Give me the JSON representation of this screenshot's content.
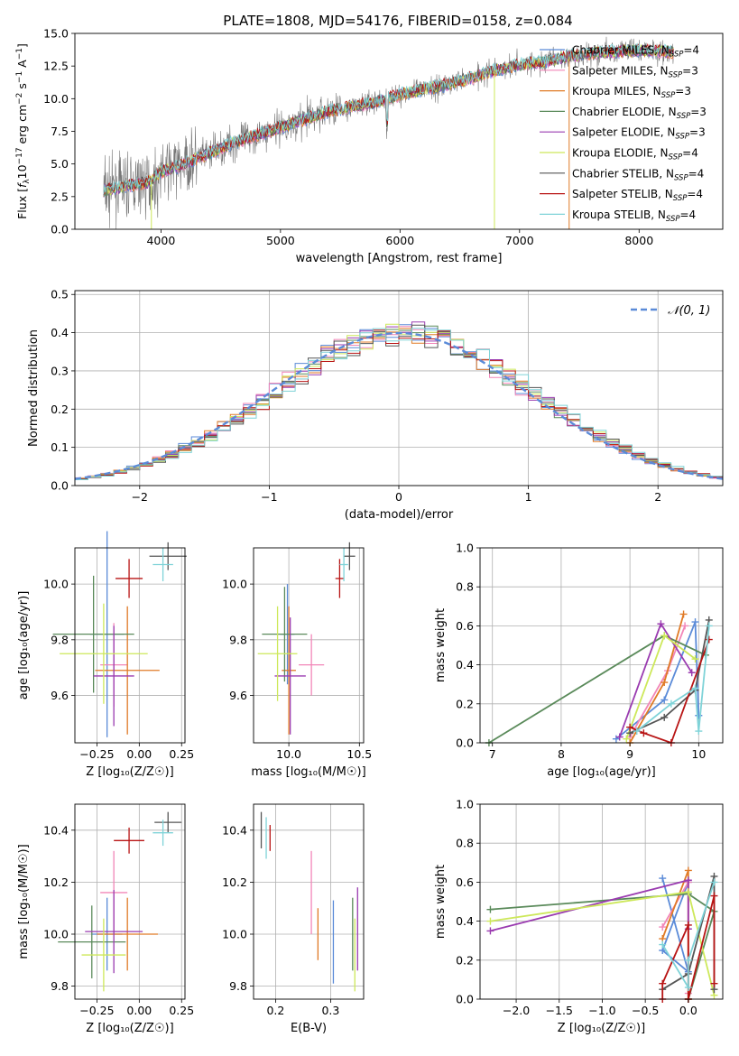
{
  "figure": {
    "title": "PLATE=1808, MJD=54176, FIBERID=0158, z=0.084"
  },
  "palette": {
    "Chabrier MILES": "#5b8bd8",
    "Salpeter MILES": "#f286b8",
    "Kroupa MILES": "#e07a26",
    "Chabrier ELODIE": "#5a8a5a",
    "Salpeter ELODIE": "#9a3bb0",
    "Kroupa ELODIE": "#cde85a",
    "Chabrier STELIB": "#555555",
    "Salpeter STELIB": "#b81414",
    "Kroupa STELIB": "#7fd3d8"
  },
  "chart_data": [
    {
      "id": "spectrum",
      "type": "line",
      "xlabel": "wavelength [Angstrom, rest frame]",
      "ylabel_parts": {
        "flux": "Flux [",
        "f": "f",
        "lambda": "λ",
        "ten": "10",
        "exp": "−17",
        "unit1": " erg cm",
        "exp2": "−2",
        "unit2": " s",
        "exp3": "−1",
        "unit3": " A",
        "exp4": "−1",
        "close": "]"
      },
      "xlim": [
        3280,
        8700
      ],
      "ylim": [
        0,
        15
      ],
      "xticks": [
        "4000",
        "5000",
        "6000",
        "7000",
        "8000"
      ],
      "xtick_values": [
        4000,
        5000,
        6000,
        7000,
        8000
      ],
      "yticks": [
        "0.0",
        "2.5",
        "5.0",
        "7.5",
        "10.0",
        "12.5",
        "15.0"
      ],
      "ytick_values": [
        0,
        2.5,
        5,
        7.5,
        10,
        12.5,
        15
      ],
      "legend": [
        {
          "name": "Chabrier MILES, N",
          "sub": "SSP",
          "suffix": "=4",
          "color_key": "Chabrier MILES"
        },
        {
          "name": "Salpeter MILES, N",
          "sub": "SSP",
          "suffix": "=3",
          "color_key": "Salpeter MILES"
        },
        {
          "name": "Kroupa MILES, N",
          "sub": "SSP",
          "suffix": "=3",
          "color_key": "Kroupa MILES"
        },
        {
          "name": "Chabrier ELODIE, N",
          "sub": "SSP",
          "suffix": "=3",
          "color_key": "Chabrier ELODIE"
        },
        {
          "name": "Salpeter ELODIE, N",
          "sub": "SSP",
          "suffix": "=3",
          "color_key": "Salpeter ELODIE"
        },
        {
          "name": "Kroupa ELODIE, N",
          "sub": "SSP",
          "suffix": "=4",
          "color_key": "Kroupa ELODIE"
        },
        {
          "name": "Chabrier STELIB, N",
          "sub": "SSP",
          "suffix": "=4",
          "color_key": "Chabrier STELIB"
        },
        {
          "name": "Salpeter STELIB, N",
          "sub": "SSP",
          "suffix": "=4",
          "color_key": "Salpeter STELIB"
        },
        {
          "name": "Kroupa STELIB, N",
          "sub": "SSP",
          "suffix": "=4",
          "color_key": "Kroupa STELIB"
        }
      ],
      "data_color": "#777777",
      "continuum": {
        "x": [
          3560,
          3700,
          3900,
          4000,
          4200,
          4400,
          4600,
          4800,
          5000,
          5200,
          5400,
          5600,
          5800,
          6000,
          6200,
          6400,
          6600,
          6800,
          7000,
          7200,
          7400,
          7600,
          7800,
          8000,
          8200,
          8300
        ],
        "y": [
          3.0,
          3.3,
          3.6,
          4.4,
          5.0,
          5.8,
          6.6,
          7.2,
          7.8,
          8.4,
          9.0,
          9.4,
          9.7,
          10.3,
          10.7,
          11.1,
          11.6,
          12.2,
          12.6,
          12.8,
          13.2,
          13.5,
          13.6,
          13.7,
          13.6,
          13.5
        ]
      },
      "drop_lines": [
        {
          "x": 6790,
          "color_key": "Kroupa ELODIE"
        },
        {
          "x": 7415,
          "color_key": "Kroupa MILES"
        },
        {
          "x": 3920,
          "color_key": "Kroupa ELODIE"
        }
      ]
    },
    {
      "id": "residuals",
      "type": "histogram",
      "xlabel": "(data-model)/error",
      "ylabel": "Normed distribution",
      "xlim": [
        -2.5,
        2.5
      ],
      "ylim": [
        0,
        0.51
      ],
      "xticks": [
        "−2",
        "−1",
        "0",
        "1",
        "2"
      ],
      "xtick_values": [
        -2,
        -1,
        0,
        1,
        2
      ],
      "yticks": [
        "0.0",
        "0.1",
        "0.2",
        "0.3",
        "0.4",
        "0.5"
      ],
      "ytick_values": [
        0,
        0.1,
        0.2,
        0.3,
        0.4,
        0.5
      ],
      "bin_width": 0.1,
      "legend": {
        "label": "𝒩(0, 1)",
        "color": "#5b8bd8"
      }
    },
    {
      "id": "age-vs-Z",
      "type": "scatter",
      "xlabel": "Z [log₁₀(Z/Z☉)]",
      "ylabel": "age  [log₁₀(age/yr)]",
      "xlim": [
        -0.38,
        0.27
      ],
      "ylim": [
        9.43,
        10.13
      ],
      "xticks": [
        "−0.25",
        "0.00",
        "0.25"
      ],
      "xtick_values": [
        -0.25,
        0,
        0.25
      ],
      "yticks": [
        "9.6",
        "9.8",
        "10.0"
      ],
      "ytick_values": [
        9.6,
        9.8,
        10.0
      ],
      "points": [
        {
          "k": "Chabrier MILES",
          "x": -0.19,
          "y": 9.82,
          "ex": 0.1,
          "ey": 0.37
        },
        {
          "k": "Salpeter MILES",
          "x": -0.15,
          "y": 9.71,
          "ex": 0.08,
          "ey": 0.15
        },
        {
          "k": "Kroupa MILES",
          "x": -0.07,
          "y": 9.69,
          "ex": 0.19,
          "ey": 0.23
        },
        {
          "k": "Chabrier ELODIE",
          "x": -0.27,
          "y": 9.82,
          "ex": 0.24,
          "ey": 0.21
        },
        {
          "k": "Salpeter ELODIE",
          "x": -0.15,
          "y": 9.67,
          "ex": 0.12,
          "ey": 0.18
        },
        {
          "k": "Kroupa ELODIE",
          "x": -0.21,
          "y": 9.75,
          "ex": 0.26,
          "ey": 0.18
        },
        {
          "k": "Chabrier STELIB",
          "x": 0.17,
          "y": 10.1,
          "ex": 0.11,
          "ey": 0.05
        },
        {
          "k": "Salpeter STELIB",
          "x": -0.06,
          "y": 10.02,
          "ex": 0.08,
          "ey": 0.07
        },
        {
          "k": "Kroupa STELIB",
          "x": 0.14,
          "y": 10.07,
          "ex": 0.06,
          "ey": 0.06
        }
      ]
    },
    {
      "id": "age-vs-mass",
      "type": "scatter",
      "xlabel": "mass [log₁₀(M/M☉)]",
      "ylabel": "",
      "xlim": [
        9.75,
        10.53
      ],
      "ylim": [
        9.43,
        10.13
      ],
      "xticks": [
        "10.0",
        "10.5"
      ],
      "xtick_values": [
        10.0,
        10.5
      ],
      "yticks": [
        "9.6",
        "9.8",
        "10.0"
      ],
      "ytick_values": [
        9.6,
        9.8,
        10.0
      ],
      "points": [
        {
          "k": "Chabrier MILES",
          "x": 9.99,
          "y": 9.82,
          "ex": 0.05,
          "ey": 0.18
        },
        {
          "k": "Salpeter MILES",
          "x": 10.16,
          "y": 9.71,
          "ex": 0.09,
          "ey": 0.11
        },
        {
          "k": "Kroupa MILES",
          "x": 10.0,
          "y": 9.69,
          "ex": 0.05,
          "ey": 0.23
        },
        {
          "k": "Chabrier ELODIE",
          "x": 9.97,
          "y": 9.82,
          "ex": 0.16,
          "ey": 0.17
        },
        {
          "k": "Salpeter ELODIE",
          "x": 10.01,
          "y": 9.67,
          "ex": 0.11,
          "ey": 0.21
        },
        {
          "k": "Kroupa ELODIE",
          "x": 9.92,
          "y": 9.75,
          "ex": 0.14,
          "ey": 0.17
        },
        {
          "k": "Chabrier STELIB",
          "x": 10.43,
          "y": 10.1,
          "ex": 0.04,
          "ey": 0.05
        },
        {
          "k": "Salpeter STELIB",
          "x": 10.36,
          "y": 10.02,
          "ex": 0.03,
          "ey": 0.07
        },
        {
          "k": "Kroupa STELIB",
          "x": 10.39,
          "y": 10.07,
          "ex": 0.03,
          "ey": 0.06
        }
      ]
    },
    {
      "id": "weight-vs-age",
      "type": "line",
      "xlabel": "age  [log₁₀(age/yr)]",
      "ylabel": "mass weight",
      "xlim": [
        6.82,
        10.35
      ],
      "ylim": [
        0,
        1.0
      ],
      "xticks": [
        "7",
        "8",
        "9",
        "10"
      ],
      "xtick_values": [
        7,
        8,
        9,
        10
      ],
      "yticks": [
        "0.0",
        "0.2",
        "0.4",
        "0.6",
        "0.8",
        "1.0"
      ],
      "ytick_values": [
        0,
        0.2,
        0.4,
        0.6,
        0.8,
        1.0
      ],
      "series": [
        {
          "k": "Chabrier MILES",
          "x": [
            8.8,
            9.5,
            9.95,
            10.0
          ],
          "y": [
            0.02,
            0.22,
            0.62,
            0.14
          ]
        },
        {
          "k": "Salpeter MILES",
          "x": [
            9.0,
            9.55,
            9.8
          ],
          "y": [
            0.03,
            0.37,
            0.6
          ]
        },
        {
          "k": "Kroupa MILES",
          "x": [
            9.0,
            9.5,
            9.78
          ],
          "y": [
            0.0,
            0.31,
            0.66
          ]
        },
        {
          "k": "Chabrier ELODIE",
          "x": [
            6.95,
            9.5,
            10.1
          ],
          "y": [
            0.0,
            0.55,
            0.45
          ]
        },
        {
          "k": "Salpeter ELODIE",
          "x": [
            8.85,
            9.45,
            9.9
          ],
          "y": [
            0.03,
            0.61,
            0.36
          ]
        },
        {
          "k": "Kroupa ELODIE",
          "x": [
            8.95,
            9.5,
            9.95
          ],
          "y": [
            0.02,
            0.55,
            0.43
          ]
        },
        {
          "k": "Chabrier STELIB",
          "x": [
            9.0,
            9.5,
            9.95,
            10.15
          ],
          "y": [
            0.05,
            0.13,
            0.27,
            0.63
          ]
        },
        {
          "k": "Salpeter STELIB",
          "x": [
            9.0,
            9.2,
            9.6,
            10.15
          ],
          "y": [
            0.08,
            0.05,
            0.0,
            0.53
          ]
        },
        {
          "k": "Kroupa STELIB",
          "x": [
            9.1,
            9.6,
            9.95,
            10.0,
            10.15
          ],
          "y": [
            0.06,
            0.2,
            0.28,
            0.06,
            0.6
          ]
        }
      ]
    },
    {
      "id": "mass-vs-Z",
      "type": "scatter",
      "xlabel": "Z [log₁₀(Z/Z☉)]",
      "ylabel": "mass [log₁₀(M/M☉)]",
      "xlim": [
        -0.38,
        0.27
      ],
      "ylim": [
        9.75,
        10.5
      ],
      "xticks": [
        "−0.25",
        "0.00",
        "0.25"
      ],
      "xtick_values": [
        -0.25,
        0,
        0.25
      ],
      "yticks": [
        "9.8",
        "10.0",
        "10.2",
        "10.4"
      ],
      "ytick_values": [
        9.8,
        10.0,
        10.2,
        10.4
      ],
      "points": [
        {
          "k": "Chabrier MILES",
          "x": -0.19,
          "y": 10.0,
          "ex": 0.09,
          "ey": 0.14
        },
        {
          "k": "Salpeter MILES",
          "x": -0.15,
          "y": 10.16,
          "ex": 0.08,
          "ey": 0.16
        },
        {
          "k": "Kroupa MILES",
          "x": -0.07,
          "y": 10.0,
          "ex": 0.18,
          "ey": 0.14
        },
        {
          "k": "Chabrier ELODIE",
          "x": -0.28,
          "y": 9.97,
          "ex": 0.2,
          "ey": 0.14
        },
        {
          "k": "Salpeter ELODIE",
          "x": -0.15,
          "y": 10.01,
          "ex": 0.17,
          "ey": 0.16
        },
        {
          "k": "Kroupa ELODIE",
          "x": -0.21,
          "y": 9.92,
          "ex": 0.13,
          "ey": 0.14
        },
        {
          "k": "Chabrier STELIB",
          "x": 0.17,
          "y": 10.43,
          "ex": 0.08,
          "ey": 0.04
        },
        {
          "k": "Salpeter STELIB",
          "x": -0.06,
          "y": 10.36,
          "ex": 0.09,
          "ey": 0.05
        },
        {
          "k": "Kroupa STELIB",
          "x": 0.14,
          "y": 10.39,
          "ex": 0.06,
          "ey": 0.05
        }
      ]
    },
    {
      "id": "mass-vs-ebv",
      "type": "scatter",
      "xlabel": "E(B-V)",
      "ylabel": "",
      "xlim": [
        0.16,
        0.36
      ],
      "ylim": [
        9.75,
        10.5
      ],
      "xticks": [
        "0.2",
        "0.3"
      ],
      "xtick_values": [
        0.2,
        0.3
      ],
      "yticks": [
        "9.8",
        "10.0",
        "10.2",
        "10.4"
      ],
      "ytick_values": [
        9.8,
        10.0,
        10.2,
        10.4
      ],
      "points": [
        {
          "k": "Chabrier MILES",
          "x": 0.305,
          "y": 9.97,
          "ex": 0,
          "ey": 0.16
        },
        {
          "k": "Salpeter MILES",
          "x": 0.265,
          "y": 10.16,
          "ex": 0,
          "ey": 0.16
        },
        {
          "k": "Kroupa MILES",
          "x": 0.277,
          "y": 10.0,
          "ex": 0,
          "ey": 0.1
        },
        {
          "k": "Chabrier ELODIE",
          "x": 0.34,
          "y": 10.0,
          "ex": 0,
          "ey": 0.14
        },
        {
          "k": "Salpeter ELODIE",
          "x": 0.349,
          "y": 10.02,
          "ex": 0,
          "ey": 0.16
        },
        {
          "k": "Kroupa ELODIE",
          "x": 0.344,
          "y": 9.92,
          "ex": 0,
          "ey": 0.14
        },
        {
          "k": "Chabrier STELIB",
          "x": 0.174,
          "y": 10.4,
          "ex": 0,
          "ey": 0.07
        },
        {
          "k": "Salpeter STELIB",
          "x": 0.19,
          "y": 10.37,
          "ex": 0,
          "ey": 0.05
        },
        {
          "k": "Kroupa STELIB",
          "x": 0.183,
          "y": 10.37,
          "ex": 0,
          "ey": 0.08
        }
      ]
    },
    {
      "id": "weight-vs-Z",
      "type": "line",
      "xlabel": "Z [log₁₀(Z/Z☉)]",
      "ylabel": "mass weight",
      "xlim": [
        -2.42,
        0.4
      ],
      "ylim": [
        0,
        1.0
      ],
      "xticks": [
        "−2.0",
        "−1.5",
        "−1.0",
        "−0.5",
        "0.0"
      ],
      "xtick_values": [
        -2,
        -1.5,
        -1,
        -0.5,
        0
      ],
      "yticks": [
        "0.0",
        "0.2",
        "0.4",
        "0.6",
        "0.8",
        "1.0"
      ],
      "ytick_values": [
        0,
        0.2,
        0.4,
        0.6,
        0.8,
        1.0
      ],
      "series": [
        {
          "k": "Chabrier MILES",
          "x": [
            -0.3,
            0.0,
            -0.3,
            0.0
          ],
          "y": [
            0.62,
            0.14,
            0.25,
            0.6
          ]
        },
        {
          "k": "Salpeter MILES",
          "x": [
            -0.3,
            0.0,
            0.0
          ],
          "y": [
            0.37,
            0.6,
            0.03
          ]
        },
        {
          "k": "Kroupa MILES",
          "x": [
            -0.3,
            0.0,
            0.0
          ],
          "y": [
            0.31,
            0.66,
            0.0
          ]
        },
        {
          "k": "Chabrier ELODIE",
          "x": [
            -2.3,
            0.0,
            0.3,
            0.0
          ],
          "y": [
            0.46,
            0.54,
            0.45,
            0.0
          ]
        },
        {
          "k": "Salpeter ELODIE",
          "x": [
            -2.3,
            0.0,
            0.0
          ],
          "y": [
            0.35,
            0.61,
            0.36
          ]
        },
        {
          "k": "Kroupa ELODIE",
          "x": [
            -2.3,
            0.0,
            0.3
          ],
          "y": [
            0.4,
            0.55,
            0.02
          ]
        },
        {
          "k": "Chabrier STELIB",
          "x": [
            -0.3,
            0.0,
            0.3,
            0.3
          ],
          "y": [
            0.05,
            0.13,
            0.63,
            0.05
          ]
        },
        {
          "k": "Salpeter STELIB",
          "x": [
            -0.3,
            -0.3,
            0.0,
            0.0,
            0.3,
            0.3
          ],
          "y": [
            0.0,
            0.08,
            0.38,
            0.0,
            0.53,
            0.08
          ]
        },
        {
          "k": "Kroupa STELIB",
          "x": [
            -0.3,
            0.0,
            0.0,
            0.3
          ],
          "y": [
            0.28,
            0.06,
            0.2,
            0.6
          ]
        }
      ]
    }
  ]
}
